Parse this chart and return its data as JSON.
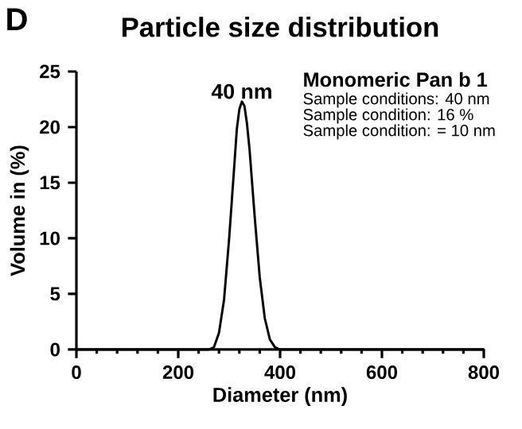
{
  "chart_data": {
    "type": "line",
    "title": "Particle size distribution",
    "xlabel": "Diameter (nm)",
    "ylabel": "Volume in (%)",
    "x": [
      0,
      260,
      270,
      280,
      290,
      300,
      310,
      315,
      320,
      325,
      330,
      335,
      340,
      350,
      360,
      370,
      380,
      390,
      400,
      800
    ],
    "series": [
      {
        "color": "#000000",
        "values": [
          0,
          0,
          0.2,
          1.5,
          4.5,
          10,
          16.5,
          19.8,
          21.6,
          22.3,
          21.9,
          20.3,
          18,
          12,
          6.5,
          2.8,
          0.9,
          0.2,
          0,
          0
        ]
      }
    ],
    "xlim": [
      0,
      800
    ],
    "ylim": [
      0,
      25
    ],
    "xticks": [
      0,
      200,
      400,
      600,
      800
    ],
    "yticks": [
      0,
      5,
      10,
      15,
      20,
      25
    ],
    "annotations": [
      "D",
      {
        "text": "40 nm",
        "x": 325,
        "y": 22.3
      },
      "**Monomeric Pan b 1**",
      "Sample conditions: 40 nm",
      "Sample condition: 16 %",
      "Sample condition: = 10 nm"
    ],
    "grid": false,
    "marker": "none",
    "line_style": "solid"
  }
}
